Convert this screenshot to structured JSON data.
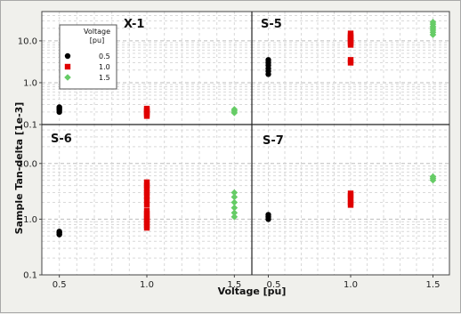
{
  "chart_data": {
    "type": "scatter",
    "ylabel": "Sample Tan-delta [1e-3]",
    "xlabel": "Voltage [pu]",
    "y_scale": "log",
    "y_range": [
      0.1,
      50
    ],
    "x_range": [
      0.4,
      1.6
    ],
    "y_ticks": [
      "0.1",
      "1.0",
      "10.0"
    ],
    "x_ticks": [
      "0.5",
      "1.0",
      "1.5"
    ],
    "grid": true,
    "legend": {
      "title_line1": "Voltage",
      "title_line2": "[pu]",
      "placement": "top-left",
      "entries": [
        {
          "label": "0.5",
          "color": "#000000",
          "marker": "circle"
        },
        {
          "label": "1.0",
          "color": "#e00000",
          "marker": "square"
        },
        {
          "label": "1.5",
          "color": "#66cc66",
          "marker": "diamond"
        }
      ]
    },
    "panels": [
      {
        "name": "X-1",
        "points": {
          "0.5": [
            0.2,
            0.22,
            0.24,
            0.26
          ],
          "1.0": [
            0.16,
            0.18,
            0.2,
            0.22,
            0.24
          ],
          "1.5": [
            0.19,
            0.21,
            0.23
          ]
        }
      },
      {
        "name": "S-5",
        "points": {
          "0.5": [
            1.6,
            1.9,
            2.2,
            2.6,
            3.0,
            3.5
          ],
          "1.0": [
            3.0,
            3.5,
            8,
            9,
            10,
            11,
            12,
            13,
            15
          ],
          "1.5": [
            14,
            16,
            18,
            20,
            22,
            25,
            28
          ]
        }
      },
      {
        "name": "S-6",
        "points": {
          "0.5": [
            0.53,
            0.57,
            0.6
          ],
          "1.0": [
            0.7,
            0.8,
            0.9,
            1.0,
            1.1,
            1.25,
            1.4,
            1.8,
            2.2,
            2.6,
            3.0,
            3.5,
            4.0,
            4.6
          ],
          "1.5": [
            1.1,
            1.3,
            1.6,
            2.0,
            2.5,
            3.0
          ]
        }
      },
      {
        "name": "S-7",
        "points": {
          "0.5": [
            1.0,
            1.1,
            1.2
          ],
          "1.0": [
            1.8,
            2.0,
            2.3,
            2.6,
            2.9
          ],
          "1.5": [
            5.0,
            5.4,
            5.8
          ]
        }
      }
    ]
  }
}
